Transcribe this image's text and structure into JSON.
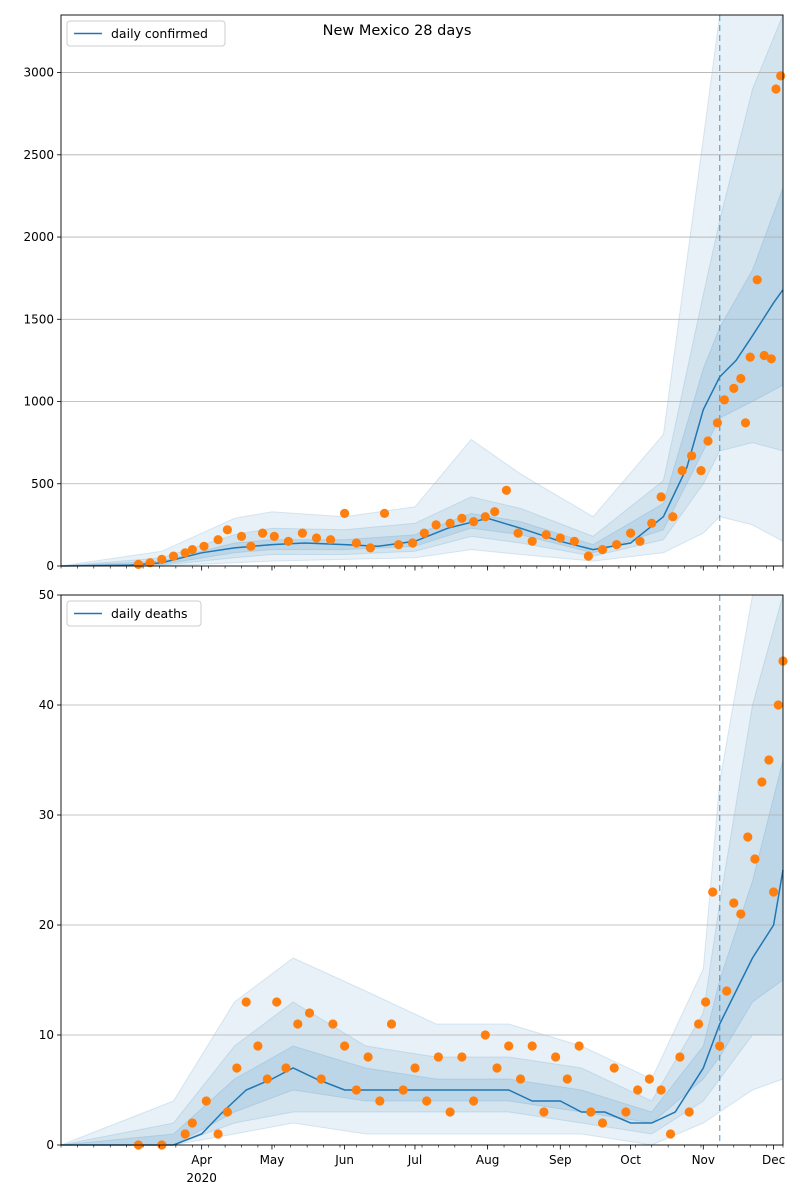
{
  "chart_data": [
    {
      "type": "line",
      "title": "New Mexico 28 days",
      "legend": "top-left",
      "legend_entries": [
        "daily confirmed"
      ],
      "grid": "horizontal",
      "xlim": [
        "2020-02-01",
        "2020-12-05"
      ],
      "ylim": [
        0,
        3350
      ],
      "yticks": [
        0,
        500,
        1000,
        1500,
        2000,
        2500,
        3000
      ],
      "forecast_start": "2020-11-08",
      "series": [
        {
          "name": "daily confirmed",
          "kind": "model_median",
          "color": "#1f77b4",
          "x": [
            "2020-02-01",
            "2020-03-01",
            "2020-03-15",
            "2020-04-01",
            "2020-04-15",
            "2020-05-01",
            "2020-05-15",
            "2020-06-01",
            "2020-06-15",
            "2020-07-01",
            "2020-07-15",
            "2020-08-01",
            "2020-08-15",
            "2020-09-01",
            "2020-09-15",
            "2020-10-01",
            "2020-10-15",
            "2020-10-25",
            "2020-11-01",
            "2020-11-08",
            "2020-11-15",
            "2020-11-22",
            "2020-12-01",
            "2020-12-05"
          ],
          "y": [
            0,
            5,
            20,
            80,
            110,
            130,
            140,
            130,
            120,
            150,
            230,
            290,
            230,
            150,
            100,
            140,
            300,
            600,
            950,
            1150,
            1250,
            1400,
            1600,
            1680
          ]
        },
        {
          "name": "",
          "kind": "band_inner",
          "x": [
            "2020-02-01",
            "2020-03-15",
            "2020-04-15",
            "2020-05-01",
            "2020-06-01",
            "2020-07-01",
            "2020-07-25",
            "2020-08-15",
            "2020-09-15",
            "2020-10-15",
            "2020-11-01",
            "2020-11-08",
            "2020-11-22",
            "2020-12-05"
          ],
          "lower": [
            0,
            10,
            80,
            100,
            100,
            120,
            230,
            190,
            80,
            220,
            700,
            900,
            1000,
            1100
          ],
          "upper": [
            0,
            30,
            140,
            160,
            160,
            190,
            320,
            270,
            130,
            380,
            1200,
            1450,
            1800,
            2300
          ]
        },
        {
          "name": "",
          "kind": "band_mid",
          "x": [
            "2020-02-01",
            "2020-03-15",
            "2020-04-15",
            "2020-05-01",
            "2020-06-01",
            "2020-07-01",
            "2020-07-25",
            "2020-08-15",
            "2020-09-15",
            "2020-10-15",
            "2020-11-01",
            "2020-11-08",
            "2020-11-22",
            "2020-12-05"
          ],
          "lower": [
            0,
            5,
            50,
            70,
            70,
            90,
            180,
            140,
            60,
            160,
            500,
            700,
            750,
            700
          ],
          "upper": [
            0,
            50,
            190,
            230,
            220,
            260,
            420,
            350,
            180,
            520,
            1650,
            2100,
            2900,
            3350
          ]
        },
        {
          "name": "",
          "kind": "band_outer",
          "x": [
            "2020-02-01",
            "2020-03-15",
            "2020-04-15",
            "2020-05-01",
            "2020-06-01",
            "2020-07-01",
            "2020-07-25",
            "2020-08-15",
            "2020-09-15",
            "2020-10-15",
            "2020-11-01",
            "2020-11-08",
            "2020-11-22",
            "2020-12-05"
          ],
          "lower": [
            0,
            0,
            20,
            30,
            40,
            50,
            100,
            70,
            30,
            80,
            200,
            300,
            250,
            150
          ],
          "upper": [
            0,
            90,
            290,
            330,
            300,
            360,
            770,
            560,
            300,
            800,
            2600,
            3350,
            3350,
            3350
          ]
        },
        {
          "name": "",
          "kind": "observed",
          "color": "#ff7f0e",
          "x": [
            "2020-03-05",
            "2020-03-10",
            "2020-03-15",
            "2020-03-20",
            "2020-03-25",
            "2020-03-28",
            "2020-04-02",
            "2020-04-08",
            "2020-04-12",
            "2020-04-18",
            "2020-04-22",
            "2020-04-27",
            "2020-05-02",
            "2020-05-08",
            "2020-05-14",
            "2020-05-20",
            "2020-05-26",
            "2020-06-01",
            "2020-06-06",
            "2020-06-12",
            "2020-06-18",
            "2020-06-24",
            "2020-06-30",
            "2020-07-05",
            "2020-07-10",
            "2020-07-16",
            "2020-07-21",
            "2020-07-26",
            "2020-07-31",
            "2020-08-04",
            "2020-08-09",
            "2020-08-14",
            "2020-08-20",
            "2020-08-26",
            "2020-09-01",
            "2020-09-07",
            "2020-09-13",
            "2020-09-19",
            "2020-09-25",
            "2020-10-01",
            "2020-10-05",
            "2020-10-10",
            "2020-10-14",
            "2020-10-19",
            "2020-10-23",
            "2020-10-27",
            "2020-10-31",
            "2020-11-03",
            "2020-11-07",
            "2020-11-10",
            "2020-11-14",
            "2020-11-17",
            "2020-11-19",
            "2020-11-21",
            "2020-11-24",
            "2020-11-27",
            "2020-11-30",
            "2020-12-02",
            "2020-12-04"
          ],
          "y": [
            10,
            20,
            40,
            60,
            80,
            100,
            120,
            160,
            220,
            180,
            120,
            200,
            180,
            150,
            200,
            170,
            160,
            320,
            140,
            110,
            320,
            130,
            140,
            200,
            250,
            260,
            290,
            270,
            300,
            330,
            460,
            200,
            150,
            190,
            170,
            150,
            60,
            100,
            130,
            200,
            150,
            260,
            420,
            300,
            580,
            670,
            580,
            760,
            870,
            1010,
            1080,
            1140,
            870,
            1270,
            1740,
            1280,
            1260,
            2900,
            2980
          ]
        }
      ]
    },
    {
      "type": "line",
      "legend": "top-left",
      "legend_entries": [
        "daily deaths"
      ],
      "grid": "horizontal",
      "xlim": [
        "2020-02-01",
        "2020-12-05"
      ],
      "ylim": [
        0,
        50
      ],
      "yticks": [
        0,
        10,
        20,
        30,
        40,
        50
      ],
      "xticks": [
        "Apr",
        "May",
        "Jun",
        "Jul",
        "Aug",
        "Sep",
        "Oct",
        "Nov",
        "Dec"
      ],
      "xtick_dates": [
        "2020-04-01",
        "2020-05-01",
        "2020-06-01",
        "2020-07-01",
        "2020-08-01",
        "2020-09-01",
        "2020-10-01",
        "2020-11-01",
        "2020-12-01"
      ],
      "year_label": "2020",
      "forecast_start": "2020-11-08",
      "series": [
        {
          "name": "daily deaths",
          "kind": "model_median",
          "color": "#1f77b4",
          "x": [
            "2020-02-01",
            "2020-03-20",
            "2020-04-01",
            "2020-04-10",
            "2020-04-20",
            "2020-05-01",
            "2020-05-10",
            "2020-05-20",
            "2020-06-01",
            "2020-06-10",
            "2020-06-20",
            "2020-07-01",
            "2020-07-10",
            "2020-07-20",
            "2020-08-01",
            "2020-08-10",
            "2020-08-20",
            "2020-09-01",
            "2020-09-10",
            "2020-09-20",
            "2020-10-01",
            "2020-10-10",
            "2020-10-20",
            "2020-11-01",
            "2020-11-08",
            "2020-11-15",
            "2020-11-22",
            "2020-12-01",
            "2020-12-05"
          ],
          "y": [
            0,
            0,
            1,
            3,
            5,
            6,
            7,
            6,
            5,
            5,
            5,
            5,
            5,
            5,
            5,
            5,
            4,
            4,
            3,
            3,
            2,
            2,
            3,
            7,
            11,
            14,
            17,
            20,
            25
          ]
        },
        {
          "name": "",
          "kind": "band_inner",
          "x": [
            "2020-02-01",
            "2020-03-20",
            "2020-04-15",
            "2020-05-10",
            "2020-06-10",
            "2020-07-10",
            "2020-08-10",
            "2020-09-10",
            "2020-10-10",
            "2020-11-01",
            "2020-11-08",
            "2020-11-22",
            "2020-12-05"
          ],
          "lower": [
            0,
            0,
            3,
            5,
            4,
            4,
            4,
            3,
            2,
            6,
            8,
            13,
            15
          ],
          "upper": [
            0,
            1,
            6,
            9,
            7,
            6,
            6,
            5,
            3,
            9,
            15,
            24,
            35
          ]
        },
        {
          "name": "",
          "kind": "band_mid",
          "x": [
            "2020-02-01",
            "2020-03-20",
            "2020-04-15",
            "2020-05-10",
            "2020-06-10",
            "2020-07-10",
            "2020-08-10",
            "2020-09-10",
            "2020-10-10",
            "2020-11-01",
            "2020-11-08",
            "2020-11-22",
            "2020-12-05"
          ],
          "lower": [
            0,
            0,
            2,
            3,
            3,
            3,
            3,
            2,
            1,
            4,
            6,
            10,
            10
          ],
          "upper": [
            0,
            2,
            9,
            13,
            9,
            8,
            8,
            7,
            4,
            12,
            22,
            40,
            50
          ]
        },
        {
          "name": "",
          "kind": "band_outer",
          "x": [
            "2020-02-01",
            "2020-03-20",
            "2020-04-15",
            "2020-05-10",
            "2020-06-10",
            "2020-07-10",
            "2020-08-10",
            "2020-09-10",
            "2020-10-10",
            "2020-11-01",
            "2020-11-08",
            "2020-11-22",
            "2020-12-05"
          ],
          "lower": [
            0,
            0,
            1,
            2,
            1,
            1,
            1,
            1,
            0,
            2,
            3,
            5,
            6
          ],
          "upper": [
            0,
            4,
            13,
            17,
            14,
            11,
            11,
            9,
            6,
            16,
            33,
            50,
            50
          ]
        },
        {
          "name": "",
          "kind": "observed",
          "color": "#ff7f0e",
          "x": [
            "2020-03-05",
            "2020-03-15",
            "2020-03-25",
            "2020-03-28",
            "2020-04-03",
            "2020-04-08",
            "2020-04-12",
            "2020-04-16",
            "2020-04-20",
            "2020-04-25",
            "2020-04-29",
            "2020-05-03",
            "2020-05-07",
            "2020-05-12",
            "2020-05-17",
            "2020-05-22",
            "2020-05-27",
            "2020-06-01",
            "2020-06-06",
            "2020-06-11",
            "2020-06-16",
            "2020-06-21",
            "2020-06-26",
            "2020-07-01",
            "2020-07-06",
            "2020-07-11",
            "2020-07-16",
            "2020-07-21",
            "2020-07-26",
            "2020-07-31",
            "2020-08-05",
            "2020-08-10",
            "2020-08-15",
            "2020-08-20",
            "2020-08-25",
            "2020-08-30",
            "2020-09-04",
            "2020-09-09",
            "2020-09-14",
            "2020-09-19",
            "2020-09-24",
            "2020-09-29",
            "2020-10-04",
            "2020-10-09",
            "2020-10-14",
            "2020-10-18",
            "2020-10-22",
            "2020-10-26",
            "2020-10-30",
            "2020-11-02",
            "2020-11-05",
            "2020-11-08",
            "2020-11-11",
            "2020-11-14",
            "2020-11-17",
            "2020-11-20",
            "2020-11-23",
            "2020-11-26",
            "2020-11-29",
            "2020-12-01",
            "2020-12-03",
            "2020-12-05"
          ],
          "y": [
            0,
            0,
            1,
            2,
            4,
            1,
            3,
            7,
            13,
            9,
            6,
            13,
            7,
            11,
            12,
            6,
            11,
            9,
            5,
            8,
            4,
            11,
            5,
            7,
            4,
            8,
            3,
            8,
            4,
            10,
            7,
            9,
            6,
            9,
            3,
            8,
            6,
            9,
            3,
            2,
            7,
            3,
            5,
            6,
            5,
            1,
            8,
            3,
            11,
            13,
            23,
            9,
            14,
            22,
            21,
            28,
            26,
            33,
            35,
            23,
            40,
            44
          ]
        }
      ]
    }
  ]
}
